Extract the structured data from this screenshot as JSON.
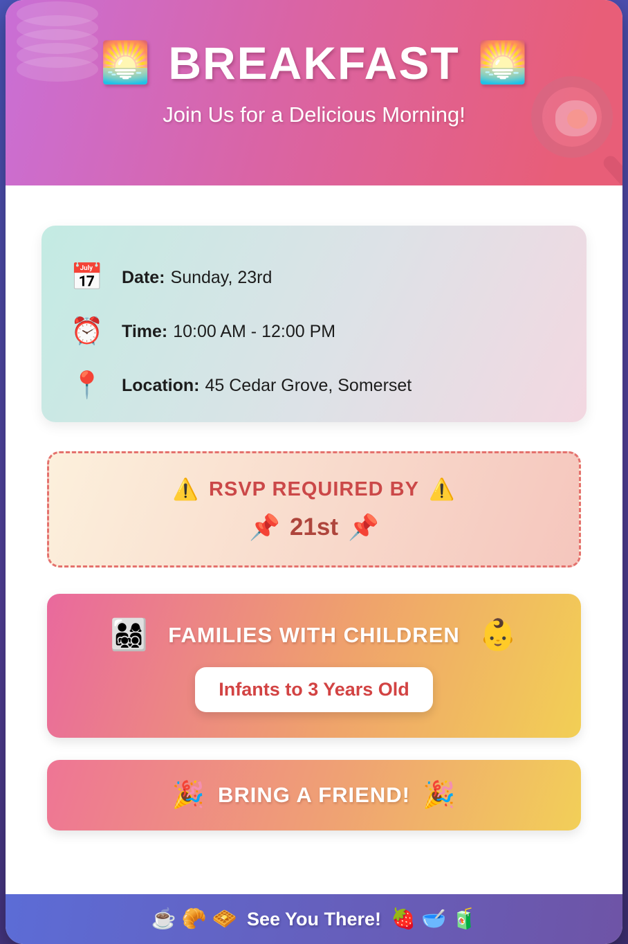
{
  "header": {
    "title": "BREAKFAST",
    "title_emoji": "🌅",
    "subtitle": "Join Us for a Delicious Morning!"
  },
  "info": {
    "rows": [
      {
        "icon": "📅",
        "label": "Date:",
        "value": "Sunday, 23rd"
      },
      {
        "icon": "⏰",
        "label": "Time:",
        "value": "10:00 AM - 12:00 PM"
      },
      {
        "icon": "📍",
        "label": "Location:",
        "value": "45 Cedar Grove, Somerset"
      }
    ]
  },
  "rsvp": {
    "warning_emoji": "⚠️",
    "heading": "RSVP REQUIRED BY",
    "pin_emoji": "📌",
    "deadline": "21st"
  },
  "families": {
    "family_emoji": "👨‍👩‍👧‍👦",
    "title": "FAMILIES WITH CHILDREN",
    "baby_emoji": "👶",
    "age_pill": "Infants to 3 Years Old"
  },
  "friend": {
    "emoji": "🎉",
    "text": "BRING A FRIEND!"
  },
  "footer": {
    "left_emojis": "☕ 🥐 🧇",
    "text": "See You There!",
    "right_emojis": "🍓 🥣 🧃"
  },
  "colors": {
    "page_background_top": "#4a55b8",
    "page_background_bottom": "#3e2f72",
    "header_gradient_start": "#c96fd6",
    "header_gradient_end": "#e85e78",
    "info_gradient_start": "#c3ebe3",
    "info_gradient_end": "#f3d8e1",
    "rsvp_border": "#e4716d",
    "rsvp_heading_text": "#cb4848",
    "rsvp_deadline_text": "#ae453c",
    "families_gradient_start": "#e9699d",
    "families_gradient_end": "#f2cf55",
    "pill_text": "#d24343",
    "footer_gradient_start": "#5c6cd6",
    "footer_gradient_end": "#6e54a6"
  }
}
